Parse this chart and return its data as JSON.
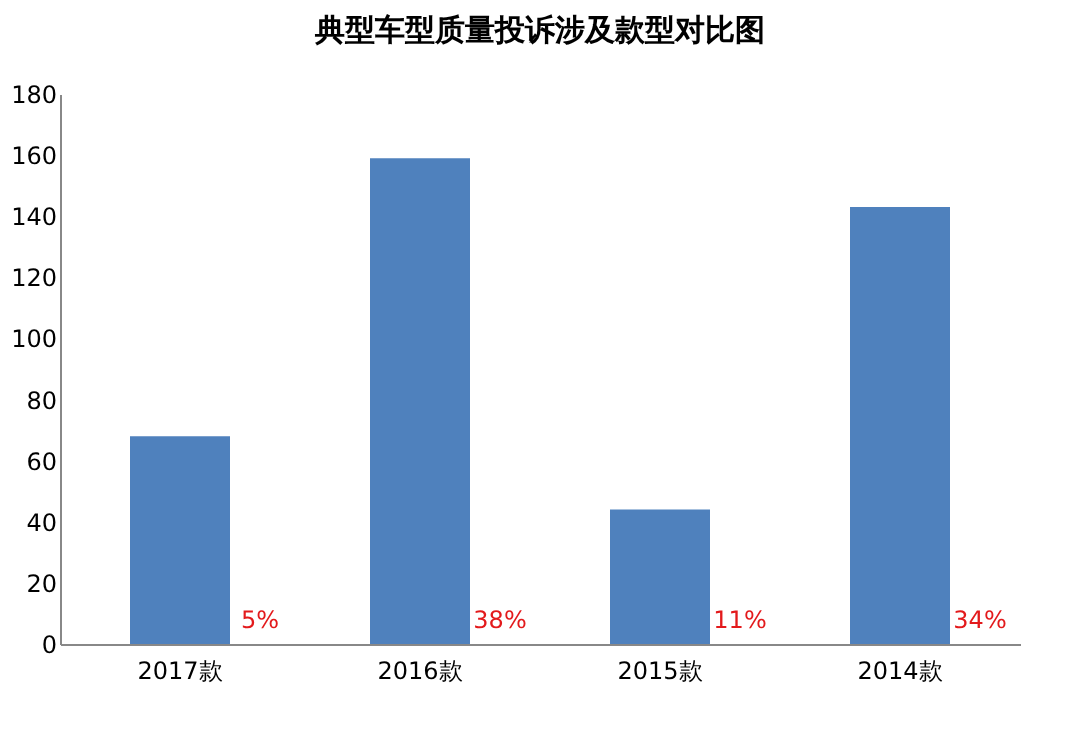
{
  "chart_data": {
    "type": "bar",
    "title": "典型车型质量投诉涉及款型对比图",
    "categories": [
      "2017款",
      "2016款",
      "2015款",
      "2014款"
    ],
    "values": [
      68,
      159,
      44,
      143
    ],
    "color": "#4f81bd",
    "ylim": [
      0,
      180
    ],
    "yticks": [
      0,
      20,
      40,
      60,
      80,
      100,
      120,
      140,
      160,
      180
    ],
    "grid": false,
    "annotations": [
      "5%",
      "38%",
      "11%",
      "34%"
    ]
  }
}
